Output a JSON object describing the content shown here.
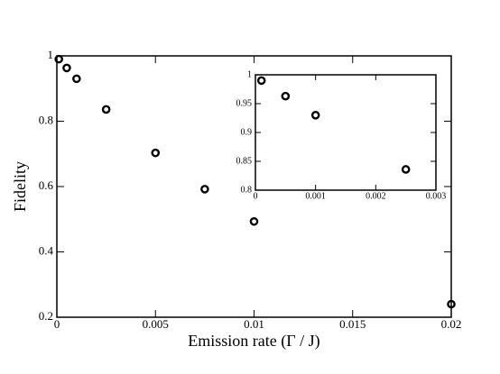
{
  "chart_data": [
    {
      "type": "scatter",
      "xlabel": "Emission rate (Γ / J)",
      "ylabel": "Fidelity",
      "x": [
        0.0001,
        0.0005,
        0.001,
        0.0025,
        0.005,
        0.0075,
        0.01,
        0.02
      ],
      "values": [
        0.99,
        0.963,
        0.93,
        0.836,
        0.703,
        0.592,
        0.493,
        0.24
      ],
      "color": "#000000",
      "xlim": [
        0,
        0.02
      ],
      "xticks": [
        0,
        0.005,
        0.01,
        0.015,
        0.02
      ],
      "ylim": [
        0.2,
        1
      ],
      "yticks": [
        0.2,
        0.4,
        0.6,
        0.8,
        1
      ]
    },
    {
      "type": "scatter",
      "x": [
        0.0001,
        0.0005,
        0.001,
        0.0025
      ],
      "values": [
        0.99,
        0.963,
        0.93,
        0.836
      ],
      "color": "#000000",
      "xlim": [
        0,
        0.003
      ],
      "xticks": [
        0,
        0.001,
        0.002,
        0.003
      ],
      "ylim": [
        0.8,
        1
      ],
      "yticks": [
        0.8,
        0.85,
        0.9,
        0.95,
        1
      ]
    }
  ]
}
